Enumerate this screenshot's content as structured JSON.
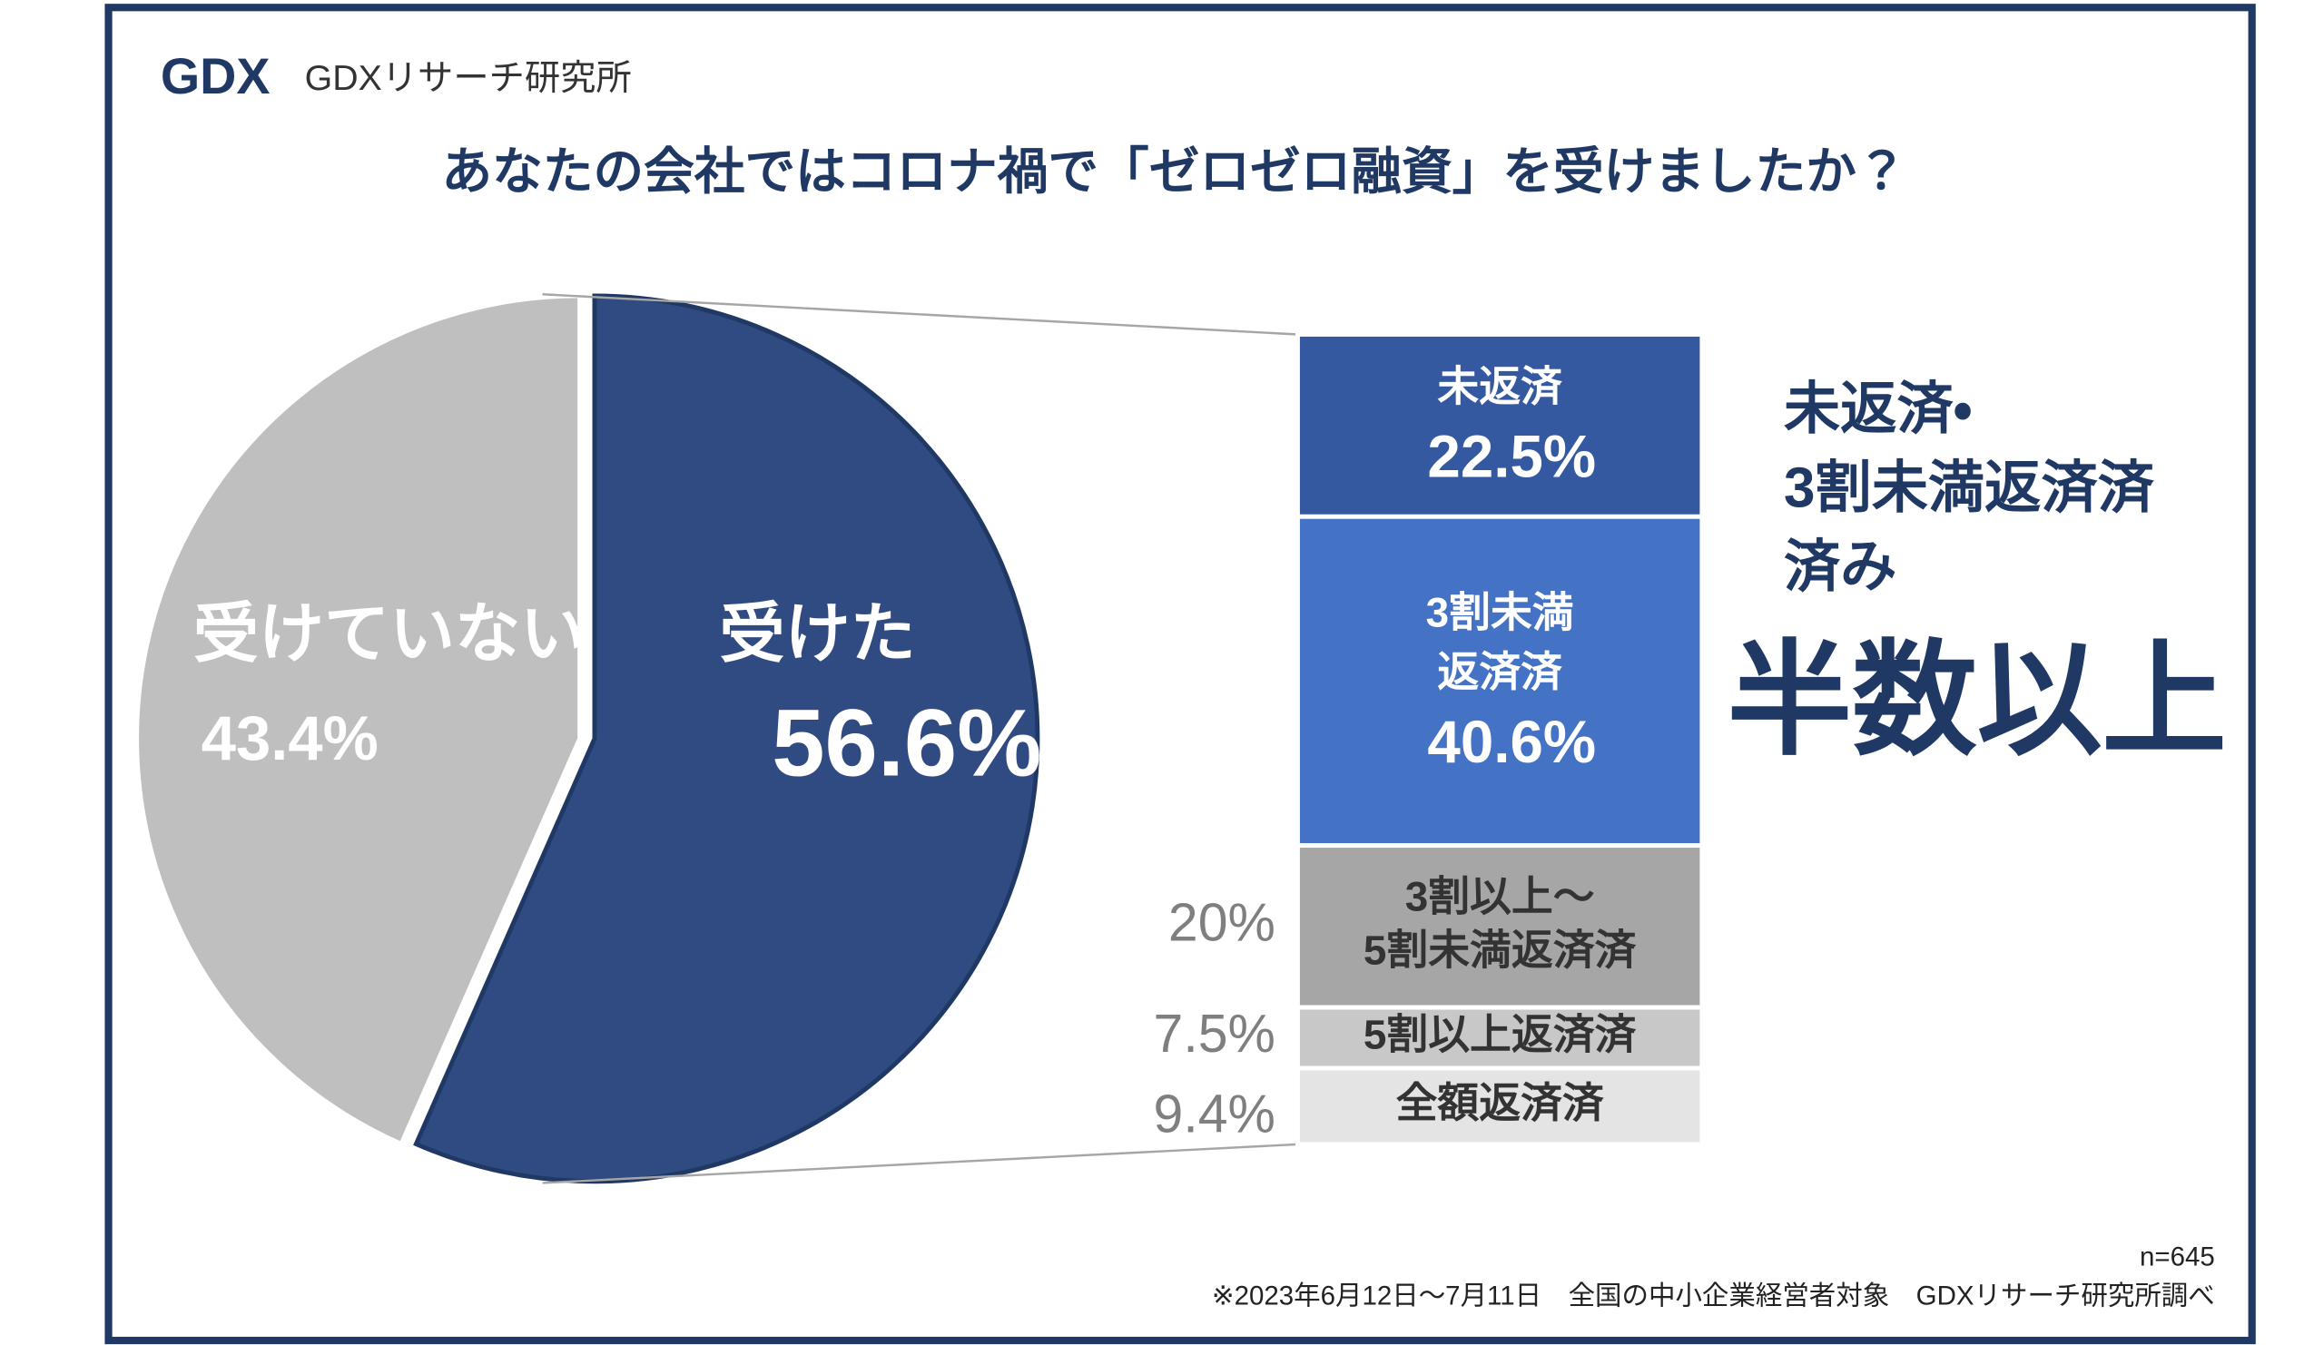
{
  "logo": {
    "mark": "GDX",
    "name": "GDXリサーチ研究所"
  },
  "chart_data": [
    {
      "type": "pie",
      "title": "あなたの会社ではコロナ禍で「ゼロゼロ融資」を受けましたか？",
      "categories": [
        "受けた",
        "受けていない"
      ],
      "values": [
        56.6,
        43.4
      ],
      "value_labels": [
        "56.6%",
        "43.4%"
      ],
      "colors": [
        "#2f4b82",
        "#bfbfbf"
      ]
    },
    {
      "type": "stacked-bar",
      "categories": [
        [
          "未返済"
        ],
        [
          "3割未満",
          "返済済"
        ],
        [
          "3割以上～",
          "5割未満返済済"
        ],
        [
          "5割以上返済済"
        ],
        [
          "全額返済済"
        ]
      ],
      "values": [
        22.5,
        40.6,
        20,
        7.5,
        9.4
      ],
      "value_labels": [
        "22.5%",
        "40.6%",
        "20%",
        "7.5%",
        "9.4%"
      ],
      "colors": [
        "#3459a0",
        "#4472c4",
        "#a6a6a6",
        "#c8c8c8",
        "#e4e4e4"
      ],
      "annotation": [
        "未返済・",
        "3割未満返済済",
        "済み"
      ],
      "highlight": "半数以上"
    }
  ],
  "footer": {
    "n": "n=645",
    "note": "※2023年6月12日～7月11日　全国の中小企業経営者対象　GDXリサーチ研究所調べ"
  }
}
